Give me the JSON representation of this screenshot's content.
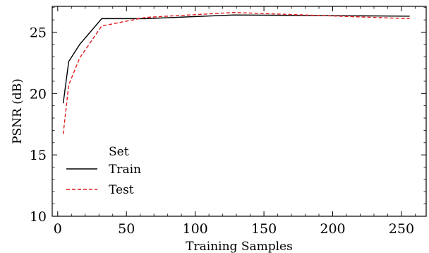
{
  "chart_data": {
    "type": "line",
    "xlabel": "Training Samples",
    "ylabel": "PSNR (dB)",
    "xlim": [
      -4,
      268
    ],
    "ylim": [
      10,
      27.1
    ],
    "xticks": [
      0,
      50,
      100,
      150,
      200,
      250
    ],
    "yticks": [
      10,
      15,
      20,
      25
    ],
    "grid": false,
    "legend": {
      "title": "Set",
      "placement": "bottom-left"
    },
    "series": [
      {
        "name": "Train",
        "color": "#000000",
        "style": "solid",
        "x": [
          4,
          8,
          16,
          32,
          64,
          128,
          256
        ],
        "y": [
          19.2,
          22.6,
          24.0,
          26.1,
          26.1,
          26.4,
          26.3
        ]
      },
      {
        "name": "Test",
        "color": "#e41a1c",
        "style": "dashed",
        "x": [
          4,
          8,
          16,
          32,
          64,
          128,
          256
        ],
        "y": [
          16.7,
          20.7,
          22.9,
          25.5,
          26.2,
          26.6,
          26.1
        ]
      }
    ]
  }
}
